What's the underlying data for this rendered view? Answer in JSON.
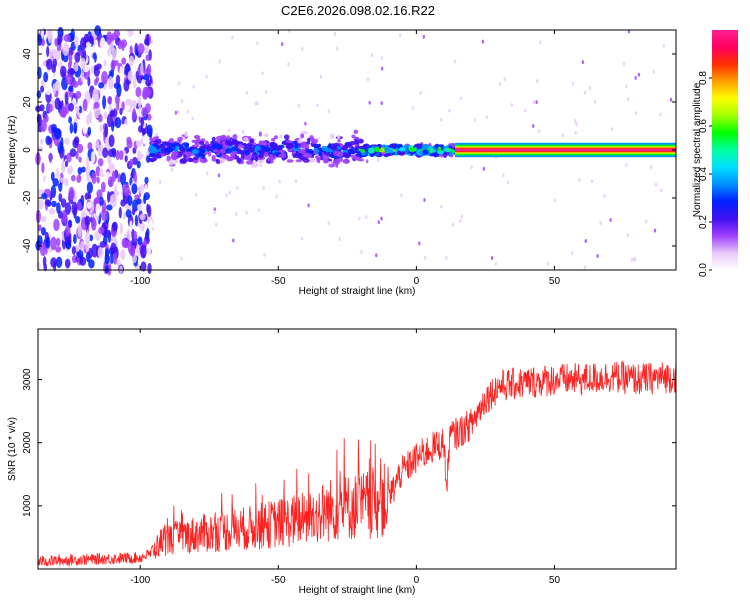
{
  "figure_title": "C2E6.2026.098.02.16.R22",
  "chart_data": [
    {
      "type": "heatmap",
      "title": "C2E6.2026.098.02.16.R22",
      "xlabel": "Height of straight line (km)",
      "ylabel": "Frequency (Hz)",
      "xlim": [
        -137,
        94
      ],
      "ylim": [
        -50,
        50
      ],
      "xticks": [
        -100,
        -50,
        0,
        50
      ],
      "yticks": [
        -40,
        -20,
        0,
        20,
        40
      ],
      "colorbar": {
        "label": "Normalized spectral amplitude",
        "range": [
          0.0,
          1.0
        ],
        "ticks": [
          0.0,
          0.2,
          0.4,
          0.6,
          0.8
        ],
        "colormap": [
          "#ffffff",
          "#e8c8f8",
          "#a040ff",
          "#4010f0",
          "#0020ff",
          "#0090ff",
          "#00e0ff",
          "#00ffa0",
          "#00ff00",
          "#a0ff00",
          "#ffff00",
          "#ffa000",
          "#ff3000",
          "#ff0060",
          "#ff2090"
        ]
      },
      "regions": [
        {
          "name": "noise",
          "x_range": [
            -137,
            -96
          ],
          "freq_range": [
            -50,
            50
          ],
          "amplitude": 0.15
        },
        {
          "name": "emerging_signal",
          "x_range": [
            -96,
            -20
          ],
          "freq_center": 0,
          "freq_halfwidth": 6,
          "amplitude": 0.4
        },
        {
          "name": "tightening_signal",
          "x_range": [
            -20,
            20
          ],
          "freq_center": 0,
          "freq_halfwidth": 2,
          "amplitude": 0.7
        },
        {
          "name": "strong_carrier",
          "x_range": [
            20,
            94
          ],
          "freq_center": 0,
          "freq_halfwidth": 1,
          "amplitude": 0.95
        }
      ]
    },
    {
      "type": "line",
      "title": "",
      "xlabel": "Height of straight line (km)",
      "ylabel": "SNR (10 * v/v)",
      "xlim": [
        -137,
        94
      ],
      "ylim": [
        0,
        3800
      ],
      "xticks": [
        -100,
        -50,
        0,
        50
      ],
      "yticks": [
        1000,
        2000,
        3000
      ],
      "line_color": "#ff2020",
      "series": [
        {
          "name": "SNR",
          "x": [
            -137,
            -120,
            -100,
            -96,
            -92,
            -80,
            -60,
            -40,
            -30,
            -20,
            -10,
            -6,
            0,
            5,
            10,
            11,
            12,
            15,
            20,
            25,
            30,
            40,
            50,
            60,
            70,
            80,
            94
          ],
          "y": [
            120,
            150,
            180,
            250,
            450,
            550,
            650,
            800,
            950,
            1000,
            1100,
            1500,
            1750,
            1900,
            2000,
            1200,
            2100,
            2150,
            2300,
            2700,
            2900,
            2950,
            3000,
            3000,
            3050,
            3000,
            3050
          ]
        }
      ]
    }
  ]
}
